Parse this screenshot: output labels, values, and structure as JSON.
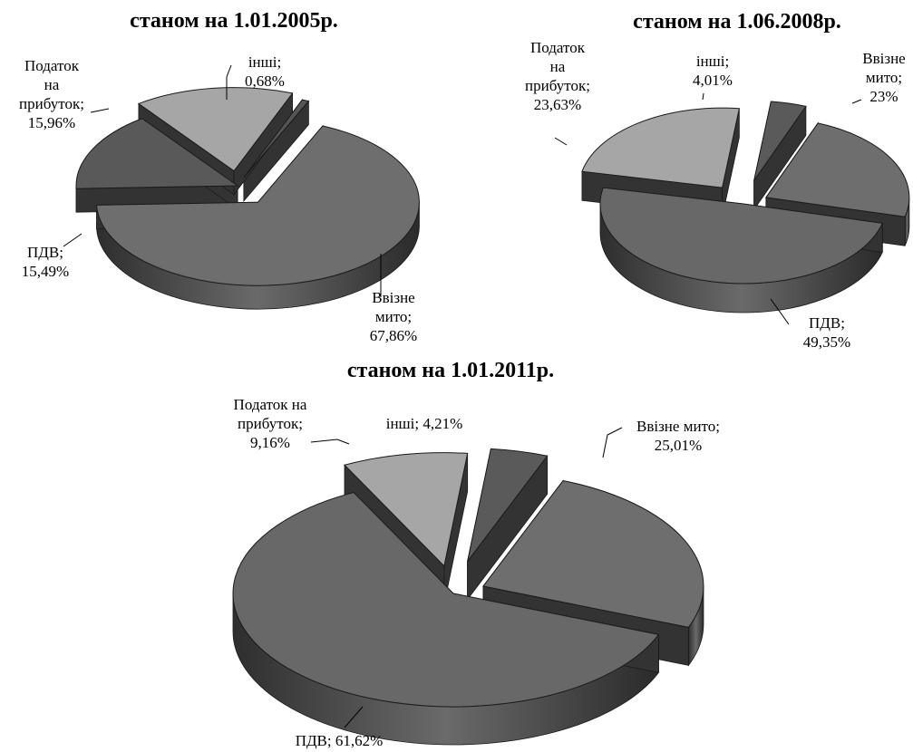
{
  "chart_data": [
    {
      "type": "pie",
      "title": "станом на  1.01.2005р.",
      "slices": [
        {
          "name": "інші",
          "value": 0.68,
          "label_lines": [
            "інші;",
            "0,68%"
          ],
          "color": "#555555"
        },
        {
          "name": "Ввізне мито",
          "value": 67.86,
          "label_lines": [
            "Ввізне",
            "мито;",
            "67,86%"
          ],
          "color": "#6e6e6e"
        },
        {
          "name": "ПДВ",
          "value": 15.49,
          "label_lines": [
            "ПДВ;",
            "15,49%"
          ],
          "color": "#595959"
        },
        {
          "name": "Податок на прибуток",
          "value": 15.96,
          "label_lines": [
            "Податок",
            "на",
            "прибуток;",
            "15,96%"
          ],
          "color": "#a6a6a6"
        }
      ]
    },
    {
      "type": "pie",
      "title": "станом на 1.06.2008р.",
      "slices": [
        {
          "name": "Ввізне мито",
          "value": 23,
          "label_lines": [
            "Ввізне",
            "мито;",
            "23%"
          ],
          "color": "#6e6e6e"
        },
        {
          "name": "ПДВ",
          "value": 49.35,
          "label_lines": [
            "ПДВ;",
            "49,35%"
          ],
          "color": "#686868"
        },
        {
          "name": "Податок на прибуток",
          "value": 23.63,
          "label_lines": [
            "Податок",
            "на",
            "прибуток;",
            "23,63%"
          ],
          "color": "#a6a6a6"
        },
        {
          "name": "інші",
          "value": 4.01,
          "label_lines": [
            "інші;",
            "4,01%"
          ],
          "color": "#5a5a5a"
        }
      ]
    },
    {
      "type": "pie",
      "title": "станом на 1.01.2011р.",
      "slices": [
        {
          "name": "Ввізне мито",
          "value": 25.01,
          "label_lines": [
            "Ввізне мито;",
            "25,01%"
          ],
          "color": "#6e6e6e"
        },
        {
          "name": "ПДВ",
          "value": 61.62,
          "label_lines": [
            "ПДВ; 61,62%"
          ],
          "color": "#686868"
        },
        {
          "name": "Податок на прибуток",
          "value": 9.16,
          "label_lines": [
            "Податок на",
            "прибуток;",
            "9,16%"
          ],
          "color": "#a6a6a6"
        },
        {
          "name": "інші",
          "value": 4.21,
          "label_lines": [
            "інші; 4,21%"
          ],
          "color": "#5a5a5a"
        }
      ]
    }
  ]
}
